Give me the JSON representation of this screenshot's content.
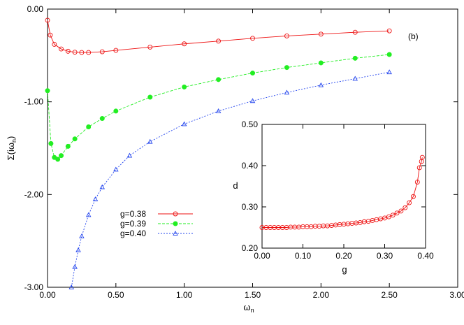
{
  "chart_data": [
    {
      "type": "scatter",
      "panel_label": "(b)",
      "ylabel": "Σ(iω",
      "ylabel_sub": "n",
      "ylabel_end": ")",
      "xlabel": "ω",
      "xlabel_sub": "n",
      "xlim": [
        0,
        3
      ],
      "ylim": [
        -3,
        0
      ],
      "x_ticks": [
        "0.00",
        "0.50",
        "1.00",
        "1.50",
        "2.00",
        "2.50",
        "3.00"
      ],
      "y_ticks": [
        "0.00",
        "-1.00",
        "-2.00",
        "-3.00"
      ],
      "grid": false,
      "legend_position": "center-left",
      "series": [
        {
          "name": "g=0.38",
          "color": "#ee1111",
          "marker": "circle-open",
          "line": "solid",
          "x": [
            0.0,
            0.02,
            0.05,
            0.1,
            0.15,
            0.2,
            0.25,
            0.3,
            0.4,
            0.5,
            0.75,
            1.0,
            1.25,
            1.5,
            1.75,
            2.0,
            2.25,
            2.5
          ],
          "y": [
            -0.12,
            -0.28,
            -0.38,
            -0.43,
            -0.455,
            -0.465,
            -0.468,
            -0.468,
            -0.46,
            -0.445,
            -0.41,
            -0.375,
            -0.345,
            -0.315,
            -0.29,
            -0.27,
            -0.25,
            -0.235
          ]
        },
        {
          "name": "g=0.39",
          "color": "#22ee22",
          "marker": "circle-filled",
          "line": "dashed",
          "x": [
            0.0,
            0.025,
            0.05,
            0.075,
            0.1,
            0.15,
            0.2,
            0.3,
            0.4,
            0.5,
            0.75,
            1.0,
            1.25,
            1.5,
            1.75,
            2.0,
            2.25,
            2.5
          ],
          "y": [
            -0.88,
            -1.45,
            -1.6,
            -1.62,
            -1.58,
            -1.48,
            -1.4,
            -1.27,
            -1.18,
            -1.1,
            -0.95,
            -0.84,
            -0.76,
            -0.69,
            -0.63,
            -0.58,
            -0.53,
            -0.49
          ]
        },
        {
          "name": "g=0.40",
          "color": "#2244ee",
          "marker": "triangle-open",
          "line": "dotted",
          "x": [
            0.175,
            0.2,
            0.225,
            0.25,
            0.3,
            0.35,
            0.4,
            0.5,
            0.6,
            0.75,
            1.0,
            1.25,
            1.5,
            1.75,
            2.0,
            2.25,
            2.5
          ],
          "y": [
            -3.0,
            -2.78,
            -2.6,
            -2.45,
            -2.22,
            -2.05,
            -1.92,
            -1.73,
            -1.58,
            -1.43,
            -1.24,
            -1.1,
            -0.99,
            -0.9,
            -0.82,
            -0.75,
            -0.68
          ]
        }
      ]
    },
    {
      "type": "line",
      "xlabel": "g",
      "ylabel": "d",
      "xlim": [
        0,
        0.4
      ],
      "ylim": [
        0.2,
        0.5
      ],
      "x_ticks": [
        "0.00",
        "0.10",
        "0.20",
        "0.30",
        "0.40"
      ],
      "y_ticks": [
        "0.20",
        "0.30",
        "0.40",
        "0.50"
      ],
      "grid": false,
      "series": [
        {
          "color": "#ee1111",
          "marker": "circle-open",
          "x": [
            0.0,
            0.01,
            0.02,
            0.03,
            0.04,
            0.05,
            0.06,
            0.07,
            0.08,
            0.09,
            0.1,
            0.11,
            0.12,
            0.13,
            0.14,
            0.15,
            0.16,
            0.17,
            0.18,
            0.19,
            0.2,
            0.21,
            0.22,
            0.23,
            0.24,
            0.25,
            0.26,
            0.27,
            0.28,
            0.29,
            0.3,
            0.31,
            0.32,
            0.33,
            0.34,
            0.35,
            0.36,
            0.37,
            0.38,
            0.385,
            0.39,
            0.392
          ],
          "y": [
            0.25,
            0.25,
            0.25,
            0.25,
            0.25,
            0.25,
            0.25,
            0.251,
            0.251,
            0.251,
            0.252,
            0.252,
            0.252,
            0.253,
            0.253,
            0.254,
            0.254,
            0.255,
            0.256,
            0.257,
            0.258,
            0.259,
            0.26,
            0.261,
            0.262,
            0.264,
            0.265,
            0.267,
            0.269,
            0.271,
            0.273,
            0.276,
            0.28,
            0.285,
            0.29,
            0.298,
            0.31,
            0.325,
            0.36,
            0.395,
            0.41,
            0.42
          ]
        }
      ]
    }
  ]
}
